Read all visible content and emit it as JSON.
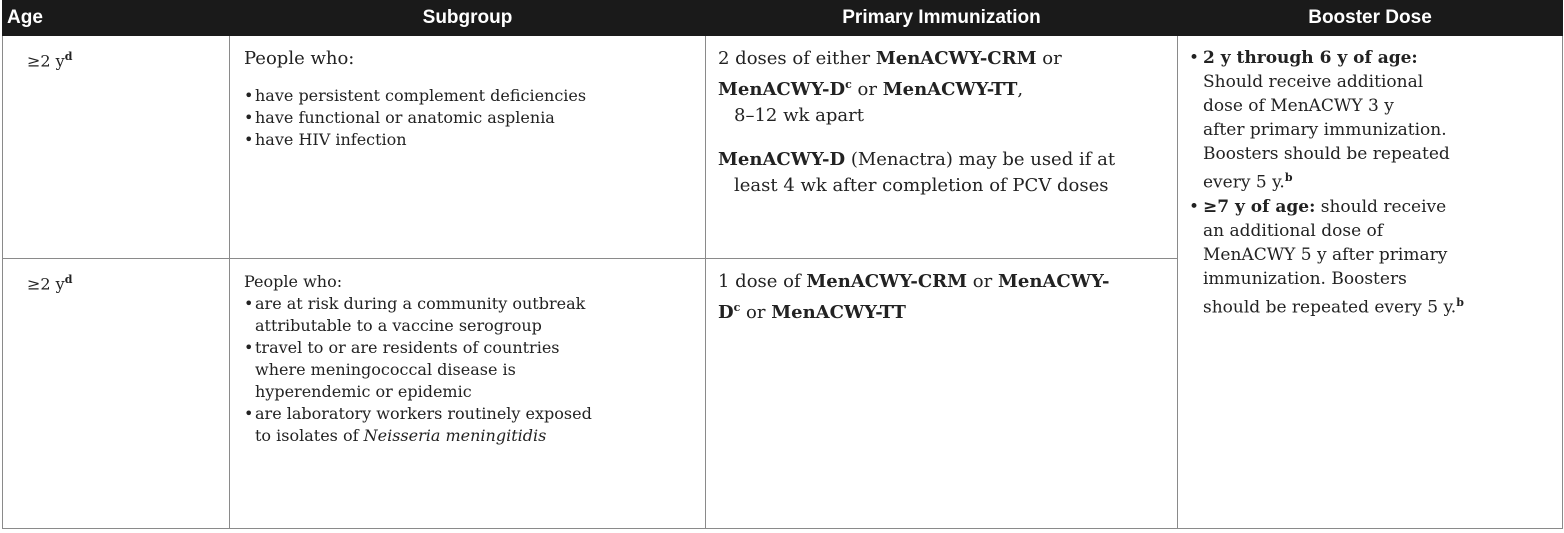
{
  "table": {
    "headers": {
      "age": "Age",
      "subgroup": "Subgroup",
      "primary": "Primary Immunization",
      "booster": "Booster Dose"
    },
    "rows": [
      {
        "age": "≥2 y",
        "age_note": "d",
        "subgroup_intro": "People who:",
        "subgroup_items": [
          "have persistent complement deficiencies",
          "have functional or anatomic asplenia",
          "have HIV infection"
        ],
        "primary": {
          "p1_a": "2 doses of either ",
          "p1_b": "MenACWY-CRM",
          "p1_c": " or",
          "p1_d": "MenACWY-D",
          "p1_d_note": "c",
          "p1_e": " or ",
          "p1_f": "MenACWY-TT",
          "p1_g": ",",
          "p1_h": "8–12 wk apart",
          "p2_a": "MenACWY-D",
          "p2_b": " (Menactra) may be used if at",
          "p2_c": "least 4 wk after completion of PCV doses"
        }
      },
      {
        "age": "≥2 y",
        "age_note": "d",
        "subgroup_intro": "People who:",
        "subgroup_items": [
          "are at risk during a community outbreak",
          "attributable to a vaccine serogroup",
          "travel to or are residents of countries",
          "where meningococcal disease is",
          "hyperendemic or epidemic",
          "are laboratory workers routinely exposed",
          "to isolates of",
          "Neisseria meningitidis"
        ],
        "primary": {
          "a": "1 dose of ",
          "b": "MenACWY-CRM",
          "c": " or ",
          "d": "MenACWY-",
          "e": "D",
          "e_note": "c",
          "f": " or ",
          "g": "MenACWY-TT"
        }
      }
    ],
    "booster": {
      "item1_bold": "2 y through 6 y of age:",
      "item1_lines": [
        "Should receive additional",
        "dose of MenACWY 3 y",
        "after primary immunization.",
        "Boosters should be repeated",
        "every 5 y."
      ],
      "item1_note": "b",
      "item2_bold": "≥7 y of age:",
      "item2_first": " should receive",
      "item2_lines": [
        "an additional dose of",
        "MenACWY 5 y after primary",
        "immunization. Boosters",
        "should be repeated every 5 y."
      ],
      "item2_note": "b"
    }
  }
}
